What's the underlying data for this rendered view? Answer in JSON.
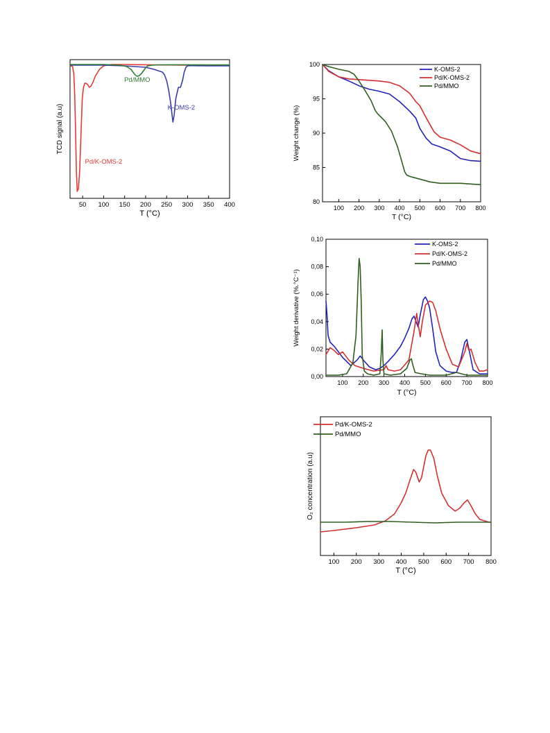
{
  "page": {
    "background": "#ffffff"
  },
  "chart_data": [
    {
      "id": "tpr",
      "type": "line",
      "xlabel": "T (°C)",
      "ylabel": "TCD signal (a.u)",
      "xlim": [
        20,
        400
      ],
      "ylim": [
        0,
        1
      ],
      "x_ticks": [
        "50",
        "100",
        "150",
        "200",
        "250",
        "300",
        "350",
        "400"
      ],
      "x_tick_values": [
        50,
        100,
        150,
        200,
        250,
        300,
        350,
        400
      ],
      "y_ticks": [],
      "y_tick_values": [],
      "annotations": [
        {
          "text": "Pd/MMO",
          "color": "#2e7d32",
          "x": 180,
          "y": 0.84
        },
        {
          "text": "K-OMS-2",
          "color": "#3a3aaa",
          "x": 285,
          "y": 0.64
        },
        {
          "text": "Pd/K-OMS-2",
          "color": "#e53935",
          "x": 100,
          "y": 0.25
        }
      ],
      "series": [
        {
          "color": "#e53935",
          "x": [
            20,
            26,
            29,
            31,
            33,
            35,
            37,
            40,
            43,
            46,
            49,
            52,
            55,
            58,
            62,
            66,
            70,
            75,
            80,
            90,
            100,
            110,
            120,
            150,
            200,
            300,
            400
          ],
          "y": [
            0.96,
            0.95,
            0.9,
            0.75,
            0.5,
            0.2,
            0.05,
            0.07,
            0.2,
            0.45,
            0.72,
            0.8,
            0.83,
            0.83,
            0.82,
            0.8,
            0.81,
            0.84,
            0.88,
            0.93,
            0.955,
            0.962,
            0.965,
            0.965,
            0.963,
            0.96,
            0.96
          ]
        },
        {
          "color": "#3a3aaa",
          "x": [
            20,
            100,
            150,
            200,
            220,
            230,
            240,
            245,
            250,
            255,
            260,
            263,
            265,
            268,
            272,
            278,
            283,
            288,
            292,
            296,
            300,
            310,
            320,
            350,
            400
          ],
          "y": [
            0.96,
            0.96,
            0.955,
            0.945,
            0.93,
            0.92,
            0.91,
            0.89,
            0.85,
            0.78,
            0.68,
            0.6,
            0.55,
            0.6,
            0.72,
            0.8,
            0.8,
            0.85,
            0.91,
            0.945,
            0.955,
            0.957,
            0.956,
            0.955,
            0.955
          ]
        },
        {
          "color": "#2e7d32",
          "x": [
            20,
            100,
            140,
            155,
            165,
            170,
            175,
            180,
            185,
            190,
            195,
            200,
            205,
            215,
            230,
            260,
            300,
            350,
            400
          ],
          "y": [
            0.965,
            0.965,
            0.96,
            0.95,
            0.93,
            0.91,
            0.89,
            0.88,
            0.885,
            0.9,
            0.92,
            0.94,
            0.955,
            0.96,
            0.962,
            0.963,
            0.963,
            0.962,
            0.962
          ]
        }
      ]
    },
    {
      "id": "tga",
      "type": "line",
      "xlabel": "T (°C)",
      "ylabel": "Weight change (%)",
      "xlim": [
        20,
        800
      ],
      "ylim": [
        80,
        100
      ],
      "x_ticks": [
        "100",
        "200",
        "300",
        "400",
        "500",
        "600",
        "700",
        "800"
      ],
      "x_tick_values": [
        100,
        200,
        300,
        400,
        500,
        600,
        700,
        800
      ],
      "y_ticks": [
        "80",
        "85",
        "90",
        "95",
        "100"
      ],
      "y_tick_values": [
        80,
        85,
        90,
        95,
        100
      ],
      "legend": {
        "position": "top-right"
      },
      "series": [
        {
          "name": "K-OMS-2",
          "color": "#2222bb",
          "x": [
            20,
            50,
            100,
            150,
            200,
            250,
            300,
            350,
            400,
            450,
            480,
            500,
            530,
            560,
            600,
            650,
            700,
            750,
            800
          ],
          "y": [
            100,
            99.1,
            98.2,
            97.6,
            96.9,
            96.4,
            96.1,
            95.7,
            94.6,
            93.2,
            92.2,
            90.7,
            89.3,
            88.4,
            88.0,
            87.4,
            86.3,
            86.0,
            85.9
          ]
        },
        {
          "name": "Pd/K-OMS-2",
          "color": "#d32f2f",
          "x": [
            20,
            50,
            100,
            150,
            200,
            300,
            350,
            400,
            450,
            480,
            500,
            530,
            570,
            600,
            650,
            700,
            750,
            800
          ],
          "y": [
            100,
            99.0,
            98.2,
            97.9,
            97.8,
            97.6,
            97.4,
            96.9,
            95.8,
            94.6,
            94.0,
            92.3,
            90.2,
            89.4,
            89.0,
            88.3,
            87.4,
            87.0
          ]
        },
        {
          "name": "Pd/MMO",
          "color": "#2e5e1e",
          "x": [
            20,
            50,
            100,
            150,
            175,
            200,
            230,
            260,
            280,
            290,
            300,
            330,
            360,
            390,
            410,
            425,
            435,
            450,
            500,
            550,
            600,
            700,
            800
          ],
          "y": [
            100,
            99.7,
            99.3,
            99.0,
            98.6,
            97.6,
            96.2,
            94.7,
            93.3,
            92.9,
            92.6,
            91.7,
            90.3,
            88.0,
            86.0,
            84.4,
            83.9,
            83.7,
            83.3,
            82.9,
            82.7,
            82.7,
            82.5
          ]
        }
      ]
    },
    {
      "id": "dtg",
      "type": "line",
      "xlabel": "T (°C)",
      "ylabel": "Weight derivative (%.°C⁻¹)",
      "xlim": [
        20,
        800
      ],
      "ylim": [
        0,
        0.1
      ],
      "x_ticks": [
        "100",
        "200",
        "300",
        "400",
        "500",
        "600",
        "700",
        "800"
      ],
      "x_tick_values": [
        100,
        200,
        300,
        400,
        500,
        600,
        700,
        800
      ],
      "y_ticks": [
        "0,00",
        "0,02",
        "0,04",
        "0,06",
        "0,08",
        "0,10"
      ],
      "y_tick_values": [
        0,
        0.02,
        0.04,
        0.06,
        0.08,
        0.1
      ],
      "legend": {
        "position": "top-right"
      },
      "series": [
        {
          "name": "K-OMS-2",
          "color": "#2222bb",
          "x": [
            20,
            25,
            30,
            40,
            60,
            100,
            140,
            170,
            185,
            200,
            230,
            260,
            280,
            300,
            320,
            350,
            380,
            400,
            420,
            435,
            445,
            455,
            465,
            475,
            490,
            500,
            510,
            520,
            535,
            550,
            570,
            600,
            630,
            650,
            670,
            690,
            700,
            710,
            730,
            760,
            800
          ],
          "y": [
            0.055,
            0.045,
            0.03,
            0.025,
            0.022,
            0.014,
            0.008,
            0.012,
            0.015,
            0.012,
            0.007,
            0.005,
            0.006,
            0.008,
            0.011,
            0.016,
            0.022,
            0.028,
            0.035,
            0.042,
            0.044,
            0.04,
            0.036,
            0.045,
            0.056,
            0.058,
            0.055,
            0.05,
            0.035,
            0.018,
            0.008,
            0.004,
            0.003,
            0.003,
            0.012,
            0.025,
            0.027,
            0.02,
            0.005,
            0.002,
            0.002
          ]
        },
        {
          "name": "Pd/K-OMS-2",
          "color": "#d32f2f",
          "x": [
            20,
            40,
            60,
            80,
            100,
            130,
            160,
            200,
            250,
            300,
            310,
            320,
            350,
            380,
            420,
            445,
            458,
            465,
            475,
            485,
            500,
            520,
            535,
            550,
            570,
            600,
            630,
            660,
            690,
            700,
            710,
            720,
            740,
            760,
            780,
            800
          ],
          "y": [
            0.016,
            0.021,
            0.019,
            0.016,
            0.018,
            0.012,
            0.008,
            0.006,
            0.004,
            0.005,
            0.008,
            0.005,
            0.004,
            0.005,
            0.012,
            0.033,
            0.046,
            0.038,
            0.029,
            0.04,
            0.052,
            0.055,
            0.054,
            0.048,
            0.035,
            0.02,
            0.009,
            0.007,
            0.018,
            0.024,
            0.019,
            0.02,
            0.01,
            0.004,
            0.004,
            0.005
          ]
        },
        {
          "name": "Pd/MMO",
          "color": "#2e5e1e",
          "x": [
            20,
            80,
            120,
            150,
            165,
            175,
            180,
            185,
            190,
            195,
            205,
            220,
            250,
            280,
            287,
            291,
            295,
            300,
            330,
            380,
            410,
            425,
            432,
            440,
            450,
            480,
            520,
            600,
            650,
            700,
            800
          ],
          "y": [
            0.001,
            0.001,
            0.002,
            0.01,
            0.03,
            0.07,
            0.086,
            0.08,
            0.055,
            0.015,
            0.004,
            0.002,
            0.001,
            0.002,
            0.018,
            0.034,
            0.012,
            0.002,
            0.001,
            0.002,
            0.006,
            0.012,
            0.013,
            0.008,
            0.003,
            0.002,
            0.001,
            0.001,
            0.003,
            0.001,
            0.001
          ]
        }
      ]
    },
    {
      "id": "o2",
      "type": "line",
      "xlabel": "T (°C)",
      "ylabel": "O₂ concentration (a.u)",
      "xlim": [
        40,
        800
      ],
      "ylim": [
        0,
        1
      ],
      "x_ticks": [
        "100",
        "200",
        "300",
        "400",
        "500",
        "600",
        "700",
        "800"
      ],
      "x_tick_values": [
        100,
        200,
        300,
        400,
        500,
        600,
        700,
        800
      ],
      "y_ticks": [],
      "y_tick_values": [],
      "legend": {
        "position": "top-left"
      },
      "series": [
        {
          "name": "Pd/K-OMS-2",
          "color": "#d32f2f",
          "x": [
            40,
            100,
            200,
            280,
            330,
            370,
            400,
            420,
            440,
            455,
            465,
            480,
            490,
            500,
            510,
            520,
            530,
            545,
            560,
            580,
            610,
            640,
            660,
            680,
            695,
            710,
            730,
            750,
            770,
            790,
            800
          ],
          "y": [
            0.17,
            0.18,
            0.2,
            0.22,
            0.25,
            0.3,
            0.38,
            0.45,
            0.55,
            0.62,
            0.6,
            0.53,
            0.56,
            0.64,
            0.72,
            0.76,
            0.76,
            0.7,
            0.58,
            0.45,
            0.36,
            0.32,
            0.34,
            0.38,
            0.4,
            0.36,
            0.3,
            0.26,
            0.25,
            0.24,
            0.24
          ]
        },
        {
          "name": "Pd/MMO",
          "color": "#2e5e1e",
          "x": [
            40,
            150,
            250,
            350,
            450,
            550,
            650,
            750,
            800
          ],
          "y": [
            0.24,
            0.24,
            0.245,
            0.245,
            0.24,
            0.235,
            0.24,
            0.24,
            0.24
          ]
        }
      ]
    }
  ]
}
